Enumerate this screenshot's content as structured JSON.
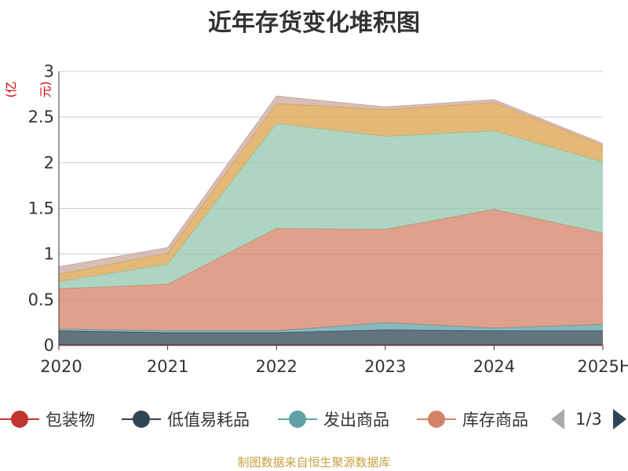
{
  "title": "近年存货变化堆积图",
  "y_unit": "(亿元)",
  "source_note": "制图数据来自恒生聚源数据库",
  "legend_pager": "1/3",
  "legend_labels": [
    "包装物",
    "低值易耗品",
    "发出商品",
    "库存商品"
  ],
  "chart_data": {
    "type": "area",
    "stacked": true,
    "title": "近年存货变化堆积图",
    "ylabel": "(亿元)",
    "ylim": [
      0,
      3
    ],
    "yticks": [
      "0",
      "0.5",
      "1",
      "1.5",
      "2",
      "2.5",
      "3"
    ],
    "grid": true,
    "legend_position": "bottom",
    "categories": [
      "2020",
      "2021",
      "2022",
      "2023",
      "2024",
      "2025H"
    ],
    "series": [
      {
        "name": "包装物",
        "color": "#c23531",
        "values": [
          0.01,
          0.01,
          0.01,
          0.01,
          0.01,
          0.01
        ]
      },
      {
        "name": "低值易耗品",
        "color": "#2f4554",
        "values": [
          0.15,
          0.13,
          0.13,
          0.16,
          0.15,
          0.15
        ]
      },
      {
        "name": "发出商品",
        "color": "#61a0a8",
        "values": [
          0.02,
          0.02,
          0.02,
          0.08,
          0.03,
          0.07
        ]
      },
      {
        "name": "库存商品",
        "color": "#d48265",
        "values": [
          0.44,
          0.51,
          1.12,
          1.02,
          1.3,
          1.0
        ]
      },
      {
        "name": "",
        "color": "#91c7ae",
        "values": [
          0.08,
          0.22,
          1.15,
          1.02,
          0.86,
          0.78
        ]
      },
      {
        "name": "",
        "color": "#dba24b",
        "values": [
          0.08,
          0.12,
          0.22,
          0.29,
          0.31,
          0.18
        ]
      },
      {
        "name": "",
        "color": "#c9a9a0",
        "values": [
          0.08,
          0.06,
          0.08,
          0.03,
          0.03,
          0.02
        ]
      }
    ]
  }
}
